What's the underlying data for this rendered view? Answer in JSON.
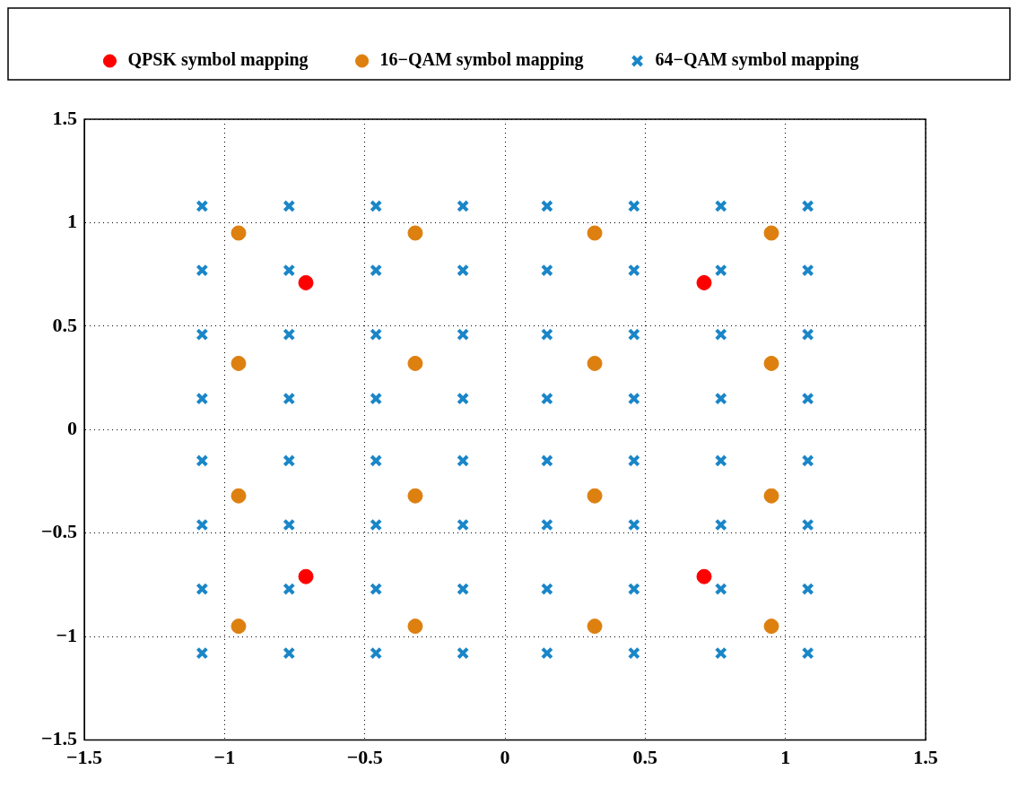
{
  "chart_data": {
    "type": "scatter",
    "legend": "top",
    "grid": true,
    "xlim": [
      -1.5,
      1.5
    ],
    "ylim": [
      -1.5,
      1.5
    ],
    "xticks": [
      {
        "value": -1.5,
        "label": "−1.5"
      },
      {
        "value": -1,
        "label": "−1"
      },
      {
        "value": -0.5,
        "label": "−0.5"
      },
      0,
      0.5,
      1,
      1.5
    ],
    "yticks": [
      {
        "value": -1.5,
        "label": "−1.5"
      },
      {
        "value": -1,
        "label": "−1"
      },
      {
        "value": -0.5,
        "label": "−0.5"
      },
      0,
      0.5,
      1,
      1.5
    ],
    "series": [
      {
        "name": "QPSK symbol mapping",
        "color": "#ff0000",
        "marker": "circle",
        "x": [
          -0.71,
          -0.71,
          0.71,
          0.71
        ],
        "values": [
          0.71,
          -0.71,
          0.71,
          -0.71
        ]
      },
      {
        "name": "16−QAM symbol mapping",
        "color": "#dd8010",
        "marker": "circle",
        "x": [
          -0.95,
          -0.95,
          -0.95,
          -0.95,
          -0.32,
          -0.32,
          -0.32,
          -0.32,
          0.32,
          0.32,
          0.32,
          0.32,
          0.95,
          0.95,
          0.95,
          0.95
        ],
        "values": [
          -0.95,
          -0.32,
          0.32,
          0.95,
          -0.95,
          -0.32,
          0.32,
          0.95,
          -0.95,
          -0.32,
          0.32,
          0.95,
          -0.95,
          -0.32,
          0.32,
          0.95
        ]
      },
      {
        "name": "64−QAM symbol mapping",
        "color": "#1a86c8",
        "marker": "cross",
        "x": [
          -1.08,
          -1.08,
          -1.08,
          -1.08,
          -1.08,
          -1.08,
          -1.08,
          -1.08,
          -0.77,
          -0.77,
          -0.77,
          -0.77,
          -0.77,
          -0.77,
          -0.77,
          -0.77,
          -0.46,
          -0.46,
          -0.46,
          -0.46,
          -0.46,
          -0.46,
          -0.46,
          -0.46,
          -0.15,
          -0.15,
          -0.15,
          -0.15,
          -0.15,
          -0.15,
          -0.15,
          -0.15,
          0.15,
          0.15,
          0.15,
          0.15,
          0.15,
          0.15,
          0.15,
          0.15,
          0.46,
          0.46,
          0.46,
          0.46,
          0.46,
          0.46,
          0.46,
          0.46,
          0.77,
          0.77,
          0.77,
          0.77,
          0.77,
          0.77,
          0.77,
          0.77,
          1.08,
          1.08,
          1.08,
          1.08,
          1.08,
          1.08,
          1.08,
          1.08
        ],
        "values": [
          -1.08,
          -0.77,
          -0.46,
          -0.15,
          0.15,
          0.46,
          0.77,
          1.08,
          -1.08,
          -0.77,
          -0.46,
          -0.15,
          0.15,
          0.46,
          0.77,
          1.08,
          -1.08,
          -0.77,
          -0.46,
          -0.15,
          0.15,
          0.46,
          0.77,
          1.08,
          -1.08,
          -0.77,
          -0.46,
          -0.15,
          0.15,
          0.46,
          0.77,
          1.08,
          -1.08,
          -0.77,
          -0.46,
          -0.15,
          0.15,
          0.46,
          0.77,
          1.08,
          -1.08,
          -0.77,
          -0.46,
          -0.15,
          0.15,
          0.46,
          0.77,
          1.08,
          -1.08,
          -0.77,
          -0.46,
          -0.15,
          0.15,
          0.46,
          0.77,
          1.08,
          -1.08,
          -0.77,
          -0.46,
          -0.15,
          0.15,
          0.46,
          0.77,
          1.08
        ]
      }
    ]
  }
}
